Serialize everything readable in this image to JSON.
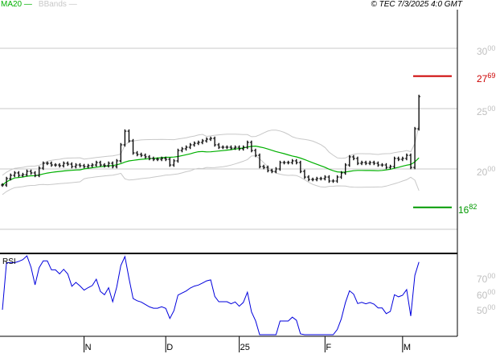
{
  "legend": {
    "ma": "MA20",
    "bands": "BBands"
  },
  "copyright": "© TEC 7/3/2025 4:0 GMT",
  "rsi_label": "RSI",
  "colors": {
    "ma": "#00b000",
    "bands": "#c8c8c8",
    "price": "#000000",
    "rsi": "#0000dd",
    "resistance": "#cc0000",
    "support": "#009900"
  },
  "price_axis": [
    {
      "major": "30",
      "minor": "00",
      "value": 3000
    },
    {
      "major": "25",
      "minor": "00",
      "value": 2500
    },
    {
      "major": "20",
      "minor": "00",
      "value": 2000
    }
  ],
  "rsi_axis": [
    {
      "major": "70",
      "minor": "00",
      "value": 70
    },
    {
      "major": "60",
      "minor": "00",
      "value": 60
    },
    {
      "major": "50",
      "minor": "00",
      "value": 50
    }
  ],
  "resistance": {
    "value": 2769,
    "major": "27",
    "minor": "69"
  },
  "support": {
    "value": 1682,
    "major": "16",
    "minor": "82"
  },
  "x_labels": [
    {
      "label": "N",
      "index": 20
    },
    {
      "label": "D",
      "index": 40
    },
    {
      "label": "25",
      "index": 58
    },
    {
      "label": "F",
      "index": 79
    },
    {
      "label": "M",
      "index": 98
    }
  ],
  "chart_data": {
    "type": "ohlc",
    "indicators": [
      "MA20",
      "BBands",
      "RSI"
    ],
    "closes": [
      1867,
      1920,
      1947,
      1967,
      1947,
      1953,
      1980,
      1967,
      1947,
      2007,
      2047,
      2047,
      2033,
      2033,
      2027,
      2047,
      2040,
      2020,
      2033,
      2027,
      2020,
      2027,
      2033,
      2053,
      2033,
      2027,
      2047,
      2020,
      2067,
      2200,
      2313,
      2233,
      2133,
      2120,
      2113,
      2100,
      2087,
      2080,
      2080,
      2087,
      2080,
      2033,
      2067,
      2153,
      2167,
      2180,
      2200,
      2213,
      2220,
      2233,
      2247,
      2253,
      2200,
      2180,
      2180,
      2180,
      2173,
      2180,
      2167,
      2180,
      2220,
      2153,
      2113,
      2020,
      2013,
      1987,
      1980,
      2000,
      2053,
      2053,
      2053,
      2067,
      2053,
      1980,
      1933,
      1913,
      1913,
      1920,
      1920,
      1933,
      1900,
      1900,
      1933,
      1967,
      2033,
      2100,
      2087,
      2047,
      2053,
      2047,
      2053,
      2047,
      2033,
      2033,
      2013,
      2020,
      2087,
      2080,
      2087,
      2113,
      2013,
      2333,
      2600
    ]
  }
}
